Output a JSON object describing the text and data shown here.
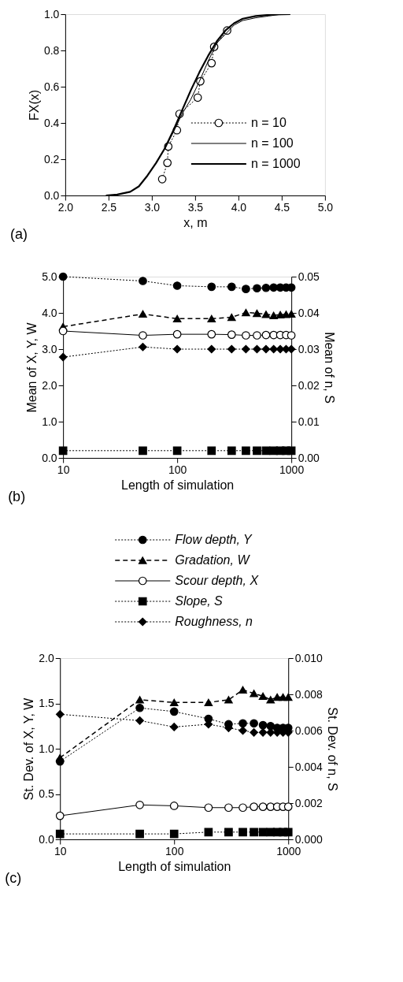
{
  "chart_data": [
    {
      "type": "line",
      "xlabel": "x, m",
      "ylabel": "FX(x)",
      "annotations": [
        "(a)"
      ],
      "xlim": [
        2.0,
        5.0
      ],
      "ylim": [
        0,
        1
      ],
      "xticks": [
        {
          "value": 2,
          "label": "2.0"
        },
        {
          "value": 2.5,
          "label": "2.5"
        },
        {
          "value": 3,
          "label": "3.0"
        },
        {
          "value": 3.5,
          "label": "3.5"
        },
        {
          "value": 4,
          "label": "4.0"
        },
        {
          "value": 4.5,
          "label": "4.5"
        },
        {
          "value": 5,
          "label": "5.0"
        }
      ],
      "yticks": [
        {
          "value": 0,
          "label": "0.0"
        },
        {
          "value": 0.2,
          "label": "0.2"
        },
        {
          "value": 0.4,
          "label": "0.4"
        },
        {
          "value": 0.6,
          "label": "0.6"
        },
        {
          "value": 0.8,
          "label": "0.8"
        },
        {
          "value": 1,
          "label": "1.0"
        }
      ],
      "grid": false,
      "legend": "bottom right",
      "series": [
        {
          "name": "n = 10",
          "color": "#000000",
          "marker": "circle",
          "line_style": "dotted",
          "x": [
            3.12,
            3.18,
            3.19,
            3.29,
            3.32,
            3.53,
            3.56,
            3.69,
            3.72,
            3.87
          ],
          "values": [
            0.09,
            0.18,
            0.27,
            0.36,
            0.45,
            0.54,
            0.63,
            0.73,
            0.82,
            0.91
          ]
        },
        {
          "name": "n = 100",
          "color": "#000000",
          "marker": "none",
          "line_style": "solid",
          "x": [
            2.55,
            2.75,
            2.85,
            2.95,
            3.05,
            3.15,
            3.25,
            3.35,
            3.45,
            3.55,
            3.65,
            3.75,
            3.85,
            3.95,
            4.05,
            4.2,
            4.35,
            4.5
          ],
          "values": [
            0,
            0.02,
            0.05,
            0.11,
            0.18,
            0.26,
            0.35,
            0.45,
            0.53,
            0.63,
            0.74,
            0.84,
            0.89,
            0.94,
            0.965,
            0.98,
            0.99,
            1.0
          ]
        },
        {
          "name": "n = 1000",
          "color": "#000000",
          "marker": "none",
          "line_style": "solid",
          "x": [
            2.47,
            2.6,
            2.75,
            2.85,
            2.95,
            3.05,
            3.15,
            3.25,
            3.35,
            3.45,
            3.55,
            3.65,
            3.75,
            3.85,
            3.95,
            4.05,
            4.2,
            4.4,
            4.6
          ],
          "values": [
            0,
            0.005,
            0.02,
            0.05,
            0.11,
            0.18,
            0.26,
            0.36,
            0.47,
            0.58,
            0.68,
            0.77,
            0.85,
            0.91,
            0.95,
            0.975,
            0.99,
            0.998,
            1.0
          ]
        }
      ]
    },
    {
      "type": "line",
      "xlabel": "Length of simulation",
      "ylabel": "Mean of X, Y, W",
      "y2label": "Mean of n, S",
      "annotations": [
        "(b)"
      ],
      "log": "x",
      "xlim": [
        10,
        1000
      ],
      "xticks": [
        10,
        100,
        1000
      ],
      "ylim": [
        0,
        5
      ],
      "yticks": [
        {
          "value": 0,
          "label": "0.0"
        },
        {
          "value": 1,
          "label": "1.0"
        },
        {
          "value": 2,
          "label": "2.0"
        },
        {
          "value": 3,
          "label": "3.0"
        },
        {
          "value": 4,
          "label": "4.0"
        },
        {
          "value": 5,
          "label": "5.0"
        }
      ],
      "y2lim": [
        0,
        0.05
      ],
      "y2ticks": [
        {
          "value": 0,
          "label": "0.00"
        },
        {
          "value": 0.01,
          "label": "0.01"
        },
        {
          "value": 0.02,
          "label": "0.02"
        },
        {
          "value": 0.03,
          "label": "0.03"
        },
        {
          "value": 0.04,
          "label": "0.04"
        },
        {
          "value": 0.05,
          "label": "0.05"
        }
      ],
      "grid": false,
      "x": [
        10,
        50,
        100,
        200,
        300,
        400,
        500,
        600,
        700,
        800,
        900,
        1000
      ],
      "series": [
        {
          "color": "#000000",
          "marker": "circle",
          "line_style": "dotted",
          "values": [
            5.0,
            4.88,
            4.75,
            4.72,
            4.72,
            4.66,
            4.68,
            4.69,
            4.7,
            4.7,
            4.7,
            4.7
          ]
        },
        {
          "color": "#000000",
          "marker": "triangle",
          "line_style": "dashed",
          "values": [
            3.62,
            3.97,
            3.84,
            3.84,
            3.88,
            4.01,
            3.99,
            3.96,
            3.93,
            3.95,
            3.96,
            3.97
          ]
        },
        {
          "color": "#000000",
          "marker": "circle",
          "line_style": "solid",
          "values": [
            3.5,
            3.38,
            3.41,
            3.41,
            3.4,
            3.38,
            3.38,
            3.39,
            3.39,
            3.39,
            3.39,
            3.38
          ]
        },
        {
          "color": "#000000",
          "marker": "square",
          "line_style": "dotted",
          "axis": "y2",
          "values": [
            0.002,
            0.002,
            0.002,
            0.002,
            0.002,
            0.002,
            0.002,
            0.002,
            0.002,
            0.002,
            0.002,
            0.002
          ]
        },
        {
          "color": "#000000",
          "marker": "diamond",
          "line_style": "dotted",
          "axis": "y2",
          "values": [
            0.0278,
            0.0306,
            0.03,
            0.03,
            0.03,
            0.03,
            0.03,
            0.03,
            0.03,
            0.03,
            0.03,
            0.03
          ]
        }
      ]
    },
    {
      "type": "line",
      "xlabel": "Length of simulation",
      "ylabel": "St. Dev. of X, Y, W",
      "y2label": "St. Dev. of n, S",
      "annotations": [
        "(c)"
      ],
      "log": "x",
      "xlim": [
        10,
        1000
      ],
      "xticks": [
        10,
        100,
        1000
      ],
      "ylim": [
        0,
        2
      ],
      "yticks": [
        {
          "value": 0,
          "label": "0.0"
        },
        {
          "value": 0.5,
          "label": "0.5"
        },
        {
          "value": 1,
          "label": "1.0"
        },
        {
          "value": 1.5,
          "label": "1.5"
        },
        {
          "value": 2,
          "label": "2.0"
        }
      ],
      "y2lim": [
        0,
        0.01
      ],
      "y2ticks": [
        {
          "value": 0,
          "label": "0.000"
        },
        {
          "value": 0.002,
          "label": "0.002"
        },
        {
          "value": 0.004,
          "label": "0.004"
        },
        {
          "value": 0.006,
          "label": "0.006"
        },
        {
          "value": 0.008,
          "label": "0.008"
        },
        {
          "value": 0.01,
          "label": "0.010"
        }
      ],
      "grid": false,
      "legend": "top",
      "x": [
        10,
        50,
        100,
        200,
        300,
        400,
        500,
        600,
        700,
        800,
        900,
        1000
      ],
      "series": [
        {
          "name": "Flow depth, Y",
          "color": "#000000",
          "marker": "circle",
          "line_style": "dotted",
          "values": [
            0.86,
            1.45,
            1.41,
            1.33,
            1.27,
            1.28,
            1.28,
            1.26,
            1.25,
            1.23,
            1.23,
            1.23
          ]
        },
        {
          "name": "Gradation, W",
          "color": "#000000",
          "marker": "triangle",
          "line_style": "dashed",
          "values": [
            0.9,
            1.54,
            1.51,
            1.51,
            1.54,
            1.65,
            1.61,
            1.58,
            1.54,
            1.57,
            1.57,
            1.57
          ]
        },
        {
          "name": "Scour depth, X",
          "color": "#000000",
          "marker": "circle",
          "line_style": "solid",
          "values": [
            0.26,
            0.38,
            0.37,
            0.35,
            0.35,
            0.35,
            0.36,
            0.36,
            0.36,
            0.36,
            0.36,
            0.36
          ]
        },
        {
          "name": "Slope, S",
          "color": "#000000",
          "marker": "square",
          "line_style": "dotted",
          "axis": "y2",
          "values": [
            0.0003,
            0.0003,
            0.0003,
            0.0004,
            0.0004,
            0.0004,
            0.0004,
            0.0004,
            0.0004,
            0.0004,
            0.0004,
            0.0004
          ]
        },
        {
          "name": "Roughness, n",
          "color": "#000000",
          "marker": "diamond",
          "line_style": "dotted",
          "axis": "y2",
          "values": [
            0.0069,
            0.00655,
            0.0062,
            0.00635,
            0.00615,
            0.006,
            0.0059,
            0.0059,
            0.0059,
            0.0059,
            0.0059,
            0.0059
          ]
        }
      ]
    }
  ]
}
